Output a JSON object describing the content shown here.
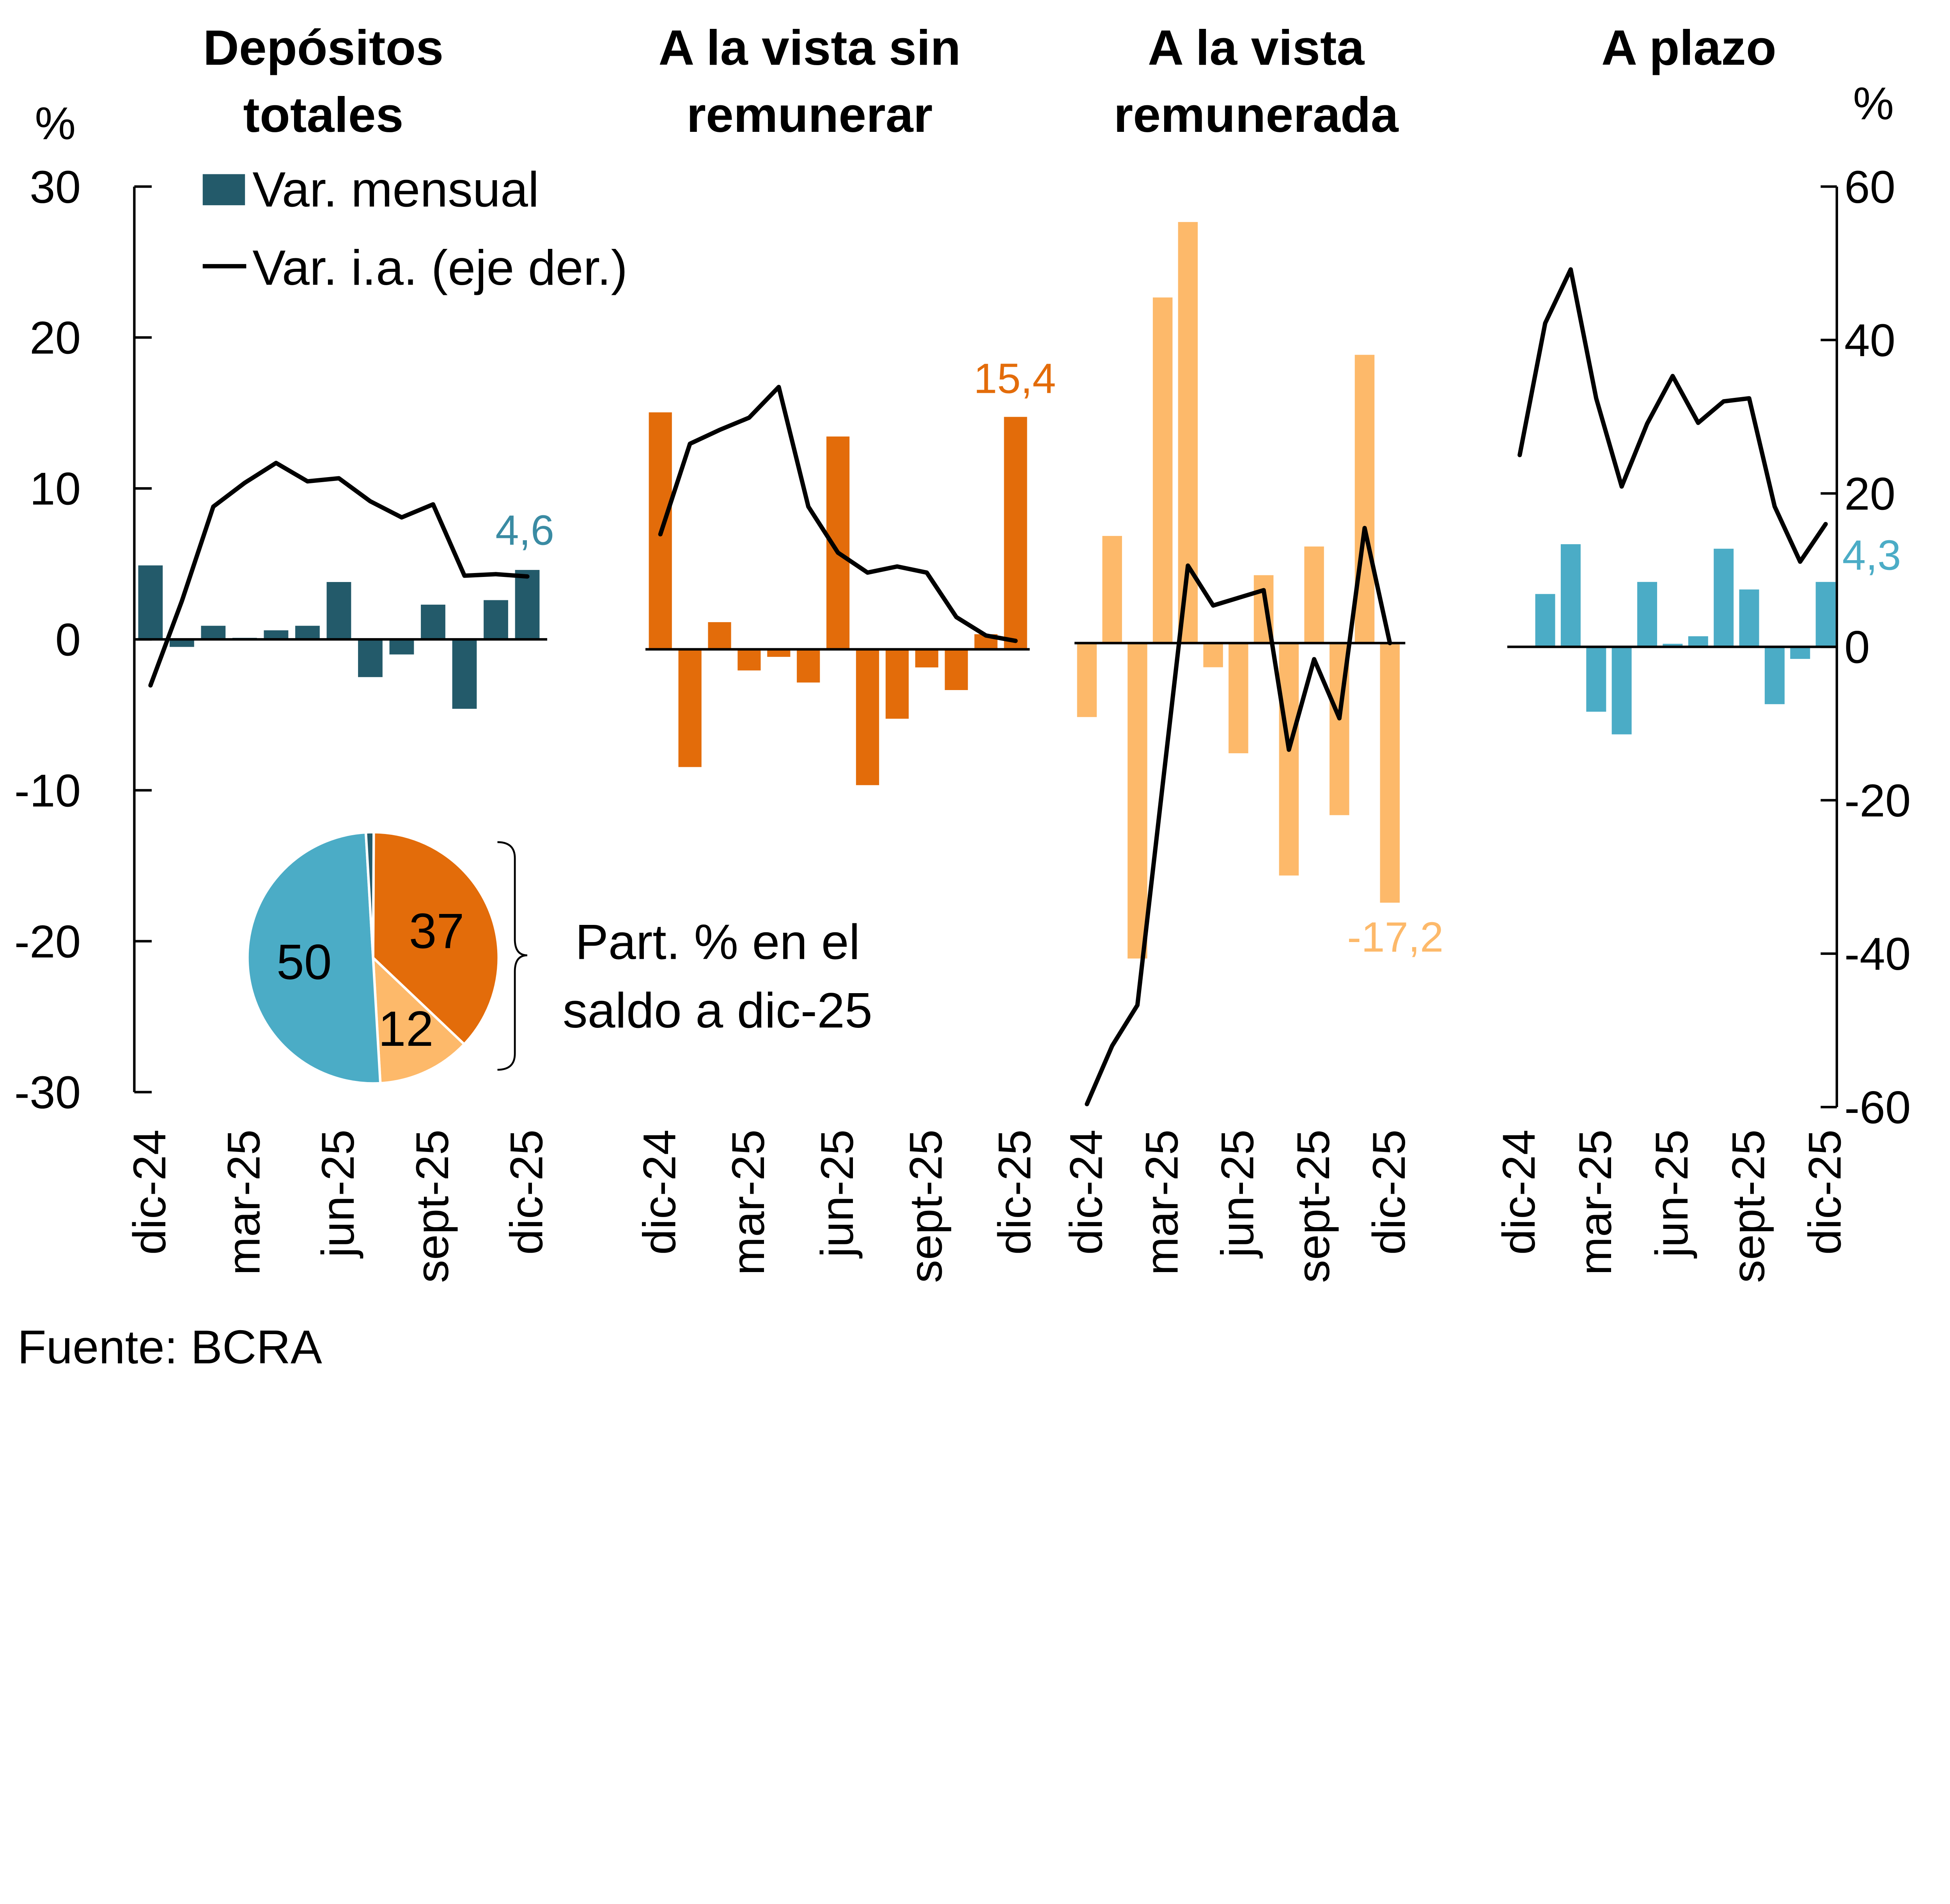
{
  "footer": "Fuente: BCRA",
  "left_axis_unit": "%",
  "right_axis_unit": "%",
  "legend": {
    "bar": "Var. mensual",
    "line": "Var. i.a. (eje der.)"
  },
  "pie_note": {
    "line1": "Part. % en el",
    "line2": "saldo a dic-25"
  },
  "colors": {
    "totales": "#235A6A",
    "sin_remunerar": "#E36C0A",
    "remunerada": "#FDB96A",
    "plazo": "#4BACC6",
    "line": "#000000"
  },
  "chart_data": {
    "type": "bar+line",
    "left_axis": {
      "ylim": [
        -30,
        30
      ],
      "ticks": [
        "30",
        "20",
        "10",
        "0",
        "-10",
        "-20",
        "-30"
      ]
    },
    "right_axis": {
      "ylim": [
        -60,
        60
      ],
      "ticks": [
        "60",
        "40",
        "20",
        "0",
        "-20",
        "-40",
        "-60"
      ]
    },
    "months": [
      "dic-24",
      "ene-25",
      "feb-25",
      "mar-25",
      "abr-25",
      "may-25",
      "jun-25",
      "jul-25",
      "ago-25",
      "sept-25",
      "oct-25",
      "nov-25",
      "dic-25"
    ],
    "x_tick_labels": [
      "dic-24",
      "mar-25",
      "jun-25",
      "sept-25",
      "dic-25"
    ],
    "panels": [
      {
        "title1": "Depósitos",
        "title2": "totales",
        "color": "#235A6A",
        "label_color": "#3A8BA3",
        "bar_values": [
          4.9,
          -0.5,
          0.9,
          0.1,
          0.6,
          0.9,
          3.8,
          -2.5,
          -1.0,
          2.3,
          -4.6,
          2.6,
          4.6
        ],
        "line_values": [
          -6.0,
          5.0,
          17.3,
          20.4,
          23.0,
          20.6,
          21.0,
          18.0,
          15.9,
          17.6,
          8.3,
          8.5,
          8.2
        ],
        "data_label": "4,6"
      },
      {
        "title1": "A la vista sin",
        "title2": "remunerar",
        "color": "#E36C0A",
        "label_color": "#E36C0A",
        "bar_values": [
          15.7,
          -7.8,
          1.8,
          -1.4,
          -0.5,
          -2.2,
          14.1,
          -9.0,
          -4.6,
          -1.2,
          -2.7,
          1.0,
          15.4
        ],
        "line_values": [
          15.0,
          26.8,
          28.6,
          30.2,
          34.2,
          18.6,
          12.6,
          10.0,
          10.8,
          10.0,
          4.2,
          1.8,
          1.1
        ],
        "data_label": "15,4"
      },
      {
        "title1": "A la vista",
        "title2": "remunerada",
        "color": "#FDB96A",
        "label_color": "#FDB96A",
        "bar_values": [
          -4.9,
          7.1,
          -20.9,
          22.9,
          27.9,
          -1.6,
          -7.3,
          4.5,
          -15.4,
          6.4,
          -11.4,
          19.1,
          -17.2
        ],
        "line_values": [
          -60.1,
          -52.5,
          -47.2,
          -18.5,
          10.1,
          4.9,
          5.9,
          6.9,
          -13.9,
          -2.1,
          -9.8,
          15.0,
          0.0
        ],
        "data_label": "-17,2"
      },
      {
        "title1": "A plazo",
        "title2": "",
        "color": "#4BACC6",
        "label_color": "#4BACC6",
        "bar_values": [
          0.0,
          3.5,
          6.8,
          -4.3,
          -5.8,
          4.3,
          0.2,
          0.7,
          6.5,
          3.8,
          -3.8,
          -0.8,
          4.3
        ],
        "line_values": [
          25.0,
          42.2,
          49.2,
          32.4,
          20.9,
          29.1,
          35.3,
          29.2,
          32.0,
          32.4,
          18.3,
          11.1,
          16.0
        ],
        "data_label": "4,3"
      }
    ],
    "pie": {
      "slices": [
        {
          "label": "37",
          "value": 37,
          "color": "#E36C0A"
        },
        {
          "label": "12",
          "value": 12,
          "color": "#FDB96A"
        },
        {
          "label": "50",
          "value": 50,
          "color": "#4BACC6"
        },
        {
          "label": "",
          "value": 1,
          "color": "#235A6A"
        }
      ]
    }
  }
}
